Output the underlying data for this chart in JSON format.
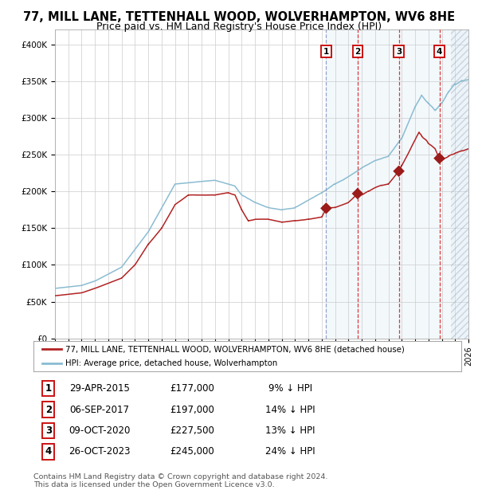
{
  "title": "77, MILL LANE, TETTENHALL WOOD, WOLVERHAMPTON, WV6 8HE",
  "subtitle": "Price paid vs. HM Land Registry's House Price Index (HPI)",
  "ylim": [
    0,
    420000
  ],
  "yticks": [
    0,
    50000,
    100000,
    150000,
    200000,
    250000,
    300000,
    350000,
    400000
  ],
  "ytick_labels": [
    "£0",
    "£50K",
    "£100K",
    "£150K",
    "£200K",
    "£250K",
    "£300K",
    "£350K",
    "£400K"
  ],
  "hpi_color": "#8abcd1",
  "price_color": "#b22222",
  "sale_marker_color": "#9b1a1a",
  "vline1_color": "#9999cc",
  "vline_color": "#dd2222",
  "shade_color": "#ddeeff",
  "grid_color": "#cccccc",
  "bg_color": "#ffffff",
  "legend_line1": "77, MILL LANE, TETTENHALL WOOD, WOLVERHAMPTON, WV6 8HE (detached house)",
  "legend_line2": "HPI: Average price, detached house, Wolverhampton",
  "sales": [
    {
      "label": "1",
      "date": "29-APR-2015",
      "price": 177000,
      "x_year": 2015.33,
      "pct": "9%",
      "dir": "↓"
    },
    {
      "label": "2",
      "date": "06-SEP-2017",
      "price": 197000,
      "x_year": 2017.69,
      "pct": "14%",
      "dir": "↓"
    },
    {
      "label": "3",
      "date": "09-OCT-2020",
      "price": 227500,
      "x_year": 2020.78,
      "pct": "13%",
      "dir": "↓"
    },
    {
      "label": "4",
      "date": "26-OCT-2023",
      "price": 245000,
      "x_year": 2023.82,
      "pct": "24%",
      "dir": "↓"
    }
  ],
  "footer1": "Contains HM Land Registry data © Crown copyright and database right 2024.",
  "footer2": "This data is licensed under the Open Government Licence v3.0.",
  "xmin": 1995,
  "xmax": 2026,
  "title_fontsize": 10.5,
  "subtitle_fontsize": 9,
  "tick_fontsize": 7.5
}
